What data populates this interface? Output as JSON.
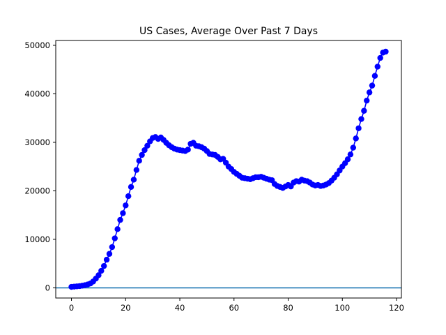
{
  "chart_data": {
    "type": "line",
    "title": "US Cases, Average Over Past 7 Days",
    "xlabel": "",
    "ylabel": "",
    "xlim": [
      -5.8,
      121.8
    ],
    "ylim": [
      -2100,
      51000
    ],
    "x_ticks": [
      0,
      20,
      40,
      60,
      80,
      100,
      120
    ],
    "y_ticks": [
      0,
      10000,
      20000,
      30000,
      40000,
      50000
    ],
    "grid": false,
    "baseline": 0,
    "colors": {
      "series": "#0000ff",
      "baseline": "#1f77b4"
    },
    "series": [
      {
        "marker": "circle",
        "x": [
          0,
          1,
          2,
          3,
          4,
          5,
          6,
          7,
          8,
          9,
          10,
          11,
          12,
          13,
          14,
          15,
          16,
          17,
          18,
          19,
          20,
          21,
          22,
          23,
          24,
          25,
          26,
          27,
          28,
          29,
          30,
          31,
          32,
          33,
          34,
          35,
          36,
          37,
          38,
          39,
          40,
          41,
          42,
          43,
          44,
          45,
          46,
          47,
          48,
          49,
          50,
          51,
          52,
          53,
          54,
          55,
          56,
          57,
          58,
          59,
          60,
          61,
          62,
          63,
          64,
          65,
          66,
          67,
          68,
          69,
          70,
          71,
          72,
          73,
          74,
          75,
          76,
          77,
          78,
          79,
          80,
          81,
          82,
          83,
          84,
          85,
          86,
          87,
          88,
          89,
          90,
          91,
          92,
          93,
          94,
          95,
          96,
          97,
          98,
          99,
          100,
          101,
          102,
          103,
          104,
          105,
          106,
          107,
          108,
          109,
          110,
          111,
          112,
          113,
          114,
          115,
          116
        ],
        "y": [
          200,
          250,
          300,
          350,
          450,
          550,
          700,
          900,
          1300,
          1900,
          2600,
          3500,
          4500,
          5800,
          7000,
          8400,
          10200,
          12100,
          14000,
          15400,
          17000,
          18900,
          20800,
          22300,
          24300,
          26200,
          27400,
          28400,
          29300,
          30200,
          30900,
          31100,
          30700,
          31000,
          30500,
          29900,
          29400,
          29000,
          28700,
          28500,
          28400,
          28300,
          28200,
          28500,
          29700,
          29900,
          29300,
          29200,
          29000,
          28700,
          28200,
          27600,
          27500,
          27400,
          27000,
          26500,
          26600,
          25800,
          25000,
          24500,
          23900,
          23500,
          23100,
          22700,
          22600,
          22500,
          22400,
          22600,
          22800,
          22800,
          22900,
          22700,
          22500,
          22300,
          22200,
          21400,
          21000,
          20800,
          20600,
          20900,
          21200,
          20900,
          21700,
          22000,
          21900,
          22300,
          22100,
          22000,
          21700,
          21300,
          21100,
          21200,
          21000,
          21100,
          21300,
          21600,
          22100,
          22700,
          23400,
          24200,
          25000,
          25700,
          26500,
          27500,
          28900,
          30800,
          32900,
          34800,
          36500,
          38600,
          40300,
          41700,
          43700,
          45600,
          47400,
          48500,
          48700
        ]
      }
    ]
  }
}
